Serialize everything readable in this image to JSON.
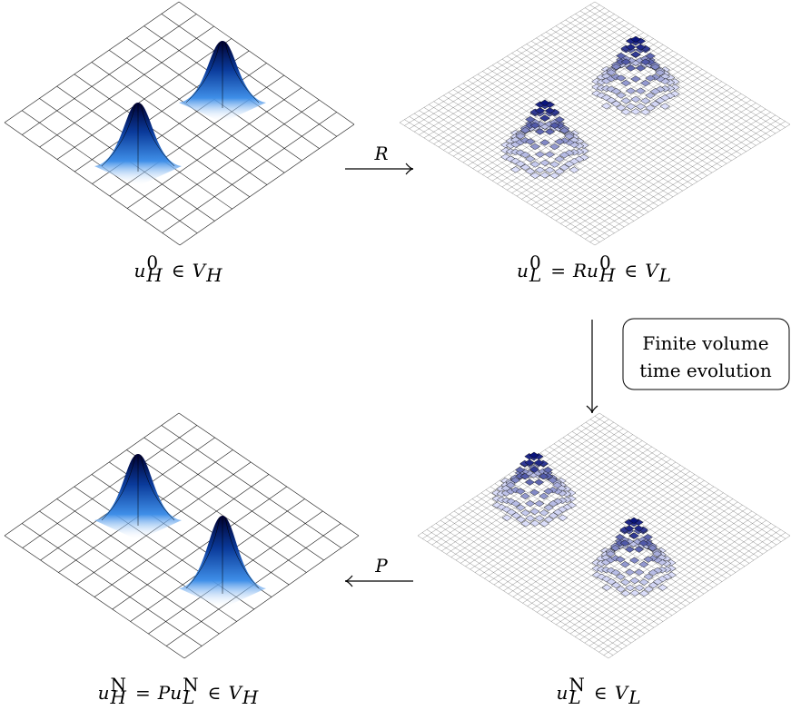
{
  "panels": [
    {
      "label": [
        {
          "text": "u",
          "sup": "0",
          "sub": "H"
        },
        {
          "text": "∈"
        },
        {
          "text": "V",
          "sub": "H"
        }
      ]
    },
    {
      "label": [
        {
          "text": "u",
          "sup": "0",
          "sub": "L"
        },
        {
          "text": "="
        },
        {
          "text": "Ru",
          "sup": "0",
          "sub": "H"
        },
        {
          "text": "∈"
        },
        {
          "text": "V",
          "sub": "L"
        }
      ]
    },
    {
      "label": [
        {
          "text": "u",
          "sup": "N",
          "sub": "L"
        },
        {
          "text": "∈"
        },
        {
          "text": "V",
          "sub": "L"
        }
      ]
    },
    {
      "label": [
        {
          "text": "u",
          "sup": "N",
          "sub": "H"
        },
        {
          "text": "="
        },
        {
          "text": "Pu",
          "sup": "N",
          "sub": "L"
        },
        {
          "text": "∈"
        },
        {
          "text": "V",
          "sub": "H"
        }
      ]
    }
  ],
  "arrows": [
    {
      "label": "R"
    },
    {
      "label": "P"
    }
  ],
  "note": [
    "Finite volume",
    "time evolution"
  ]
}
